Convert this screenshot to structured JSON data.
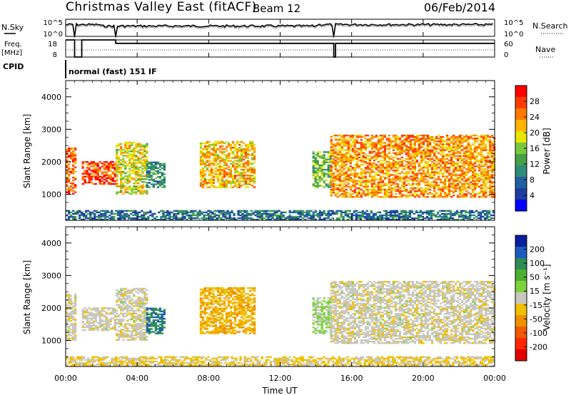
{
  "header": {
    "station": "Christmas Valley East (fitACF)",
    "beam": "Beam 12",
    "date": "06/Feb/2014"
  },
  "panels": {
    "nsky": {
      "label": "N.Sky",
      "y_ticks": [
        "10^5",
        "10^0"
      ],
      "right_label": "N.Search",
      "right_ticks": [
        "10^5",
        "10^0"
      ]
    },
    "freq": {
      "label_line1": "Freq.",
      "label_line2": "[MHz]",
      "y_ticks": [
        "18",
        "8"
      ],
      "right_label": "Nave",
      "right_ticks": [
        "60",
        "0"
      ]
    },
    "cpid": {
      "label": "CPID",
      "mode": "normal (fast) 151 IF"
    },
    "power": {
      "ylabel": "Slant Range [km]",
      "y_ticks": [
        "4000",
        "3000",
        "2000",
        "1000"
      ],
      "colorbar_label": "Power [dB]",
      "colorbar_ticks": [
        "28",
        "24",
        "20",
        "16",
        "12",
        "8",
        "4"
      ],
      "colorbar_colors": [
        "#ff0000",
        "#ff3c00",
        "#ff7800",
        "#ffb400",
        "#e6e600",
        "#78c83c",
        "#46a046",
        "#2d8c78",
        "#2060a0",
        "#1e3ca0",
        "#0000ff"
      ]
    },
    "velocity": {
      "ylabel": "Slant Range [km]",
      "y_ticks": [
        "4000",
        "3000",
        "2000",
        "1000"
      ],
      "colorbar_label": "Velocity [m s⁻¹]",
      "colorbar_ticks": [
        "200",
        "100",
        "50",
        "15",
        "-15",
        "-50",
        "-100",
        "-200"
      ],
      "colorbar_colors": [
        "#0a1e9a",
        "#1e5abe",
        "#2e8b57",
        "#4caf32",
        "#7dd23c",
        "#c8c8c0",
        "#f0c000",
        "#f09000",
        "#f05a00",
        "#ff2800",
        "#e00000"
      ]
    }
  },
  "xaxis": {
    "label": "Time UT",
    "ticks": [
      "00:00",
      "04:00",
      "08:00",
      "12:00",
      "16:00",
      "20:00",
      "00:00"
    ]
  },
  "chart_data": {
    "type": "heatmap",
    "title": "Christmas Valley East (fitACF)",
    "xlabel": "Time UT",
    "ylabel": "Slant Range [km]",
    "x_range_hours": [
      0,
      24
    ],
    "y_range_km": [
      200,
      4500
    ],
    "power_range_db": [
      0,
      30
    ],
    "velocity_range": [
      -250,
      250
    ],
    "nave_range": [
      0,
      60
    ],
    "frequency_trace": [
      {
        "t": 0.0,
        "mhz": 18
      },
      {
        "t": 0.5,
        "mhz": 8
      },
      {
        "t": 0.9,
        "mhz": 18
      },
      {
        "t": 2.8,
        "mhz": 16
      },
      {
        "t": 15.0,
        "mhz": 8
      },
      {
        "t": 15.1,
        "mhz": 16
      },
      {
        "t": 24.0,
        "mhz": 16
      }
    ],
    "echo_regions": [
      {
        "t0": 0.0,
        "t1": 0.5,
        "r0": 1000,
        "r1": 2400,
        "power": 24,
        "vel": -5
      },
      {
        "t0": 0.9,
        "t1": 2.8,
        "r0": 1300,
        "r1": 2000,
        "power": 26,
        "vel": -5
      },
      {
        "t0": 2.8,
        "t1": 4.5,
        "r0": 1000,
        "r1": 2600,
        "power": 18,
        "vel": -5
      },
      {
        "t0": 4.5,
        "t1": 5.5,
        "r0": 1200,
        "r1": 2000,
        "power": 10,
        "vel": 150
      },
      {
        "t0": 7.5,
        "t1": 10.5,
        "r0": 1200,
        "r1": 2600,
        "power": 20,
        "vel": -60
      },
      {
        "t0": 13.8,
        "t1": 14.8,
        "r0": 1200,
        "r1": 2300,
        "power": 14,
        "vel": 30
      },
      {
        "t0": 14.8,
        "t1": 24.0,
        "r0": 900,
        "r1": 2800,
        "power": 22,
        "vel": -5
      },
      {
        "t0": 0.0,
        "t1": 24.0,
        "r0": 200,
        "r1": 500,
        "power": 8,
        "vel": -30
      }
    ]
  }
}
